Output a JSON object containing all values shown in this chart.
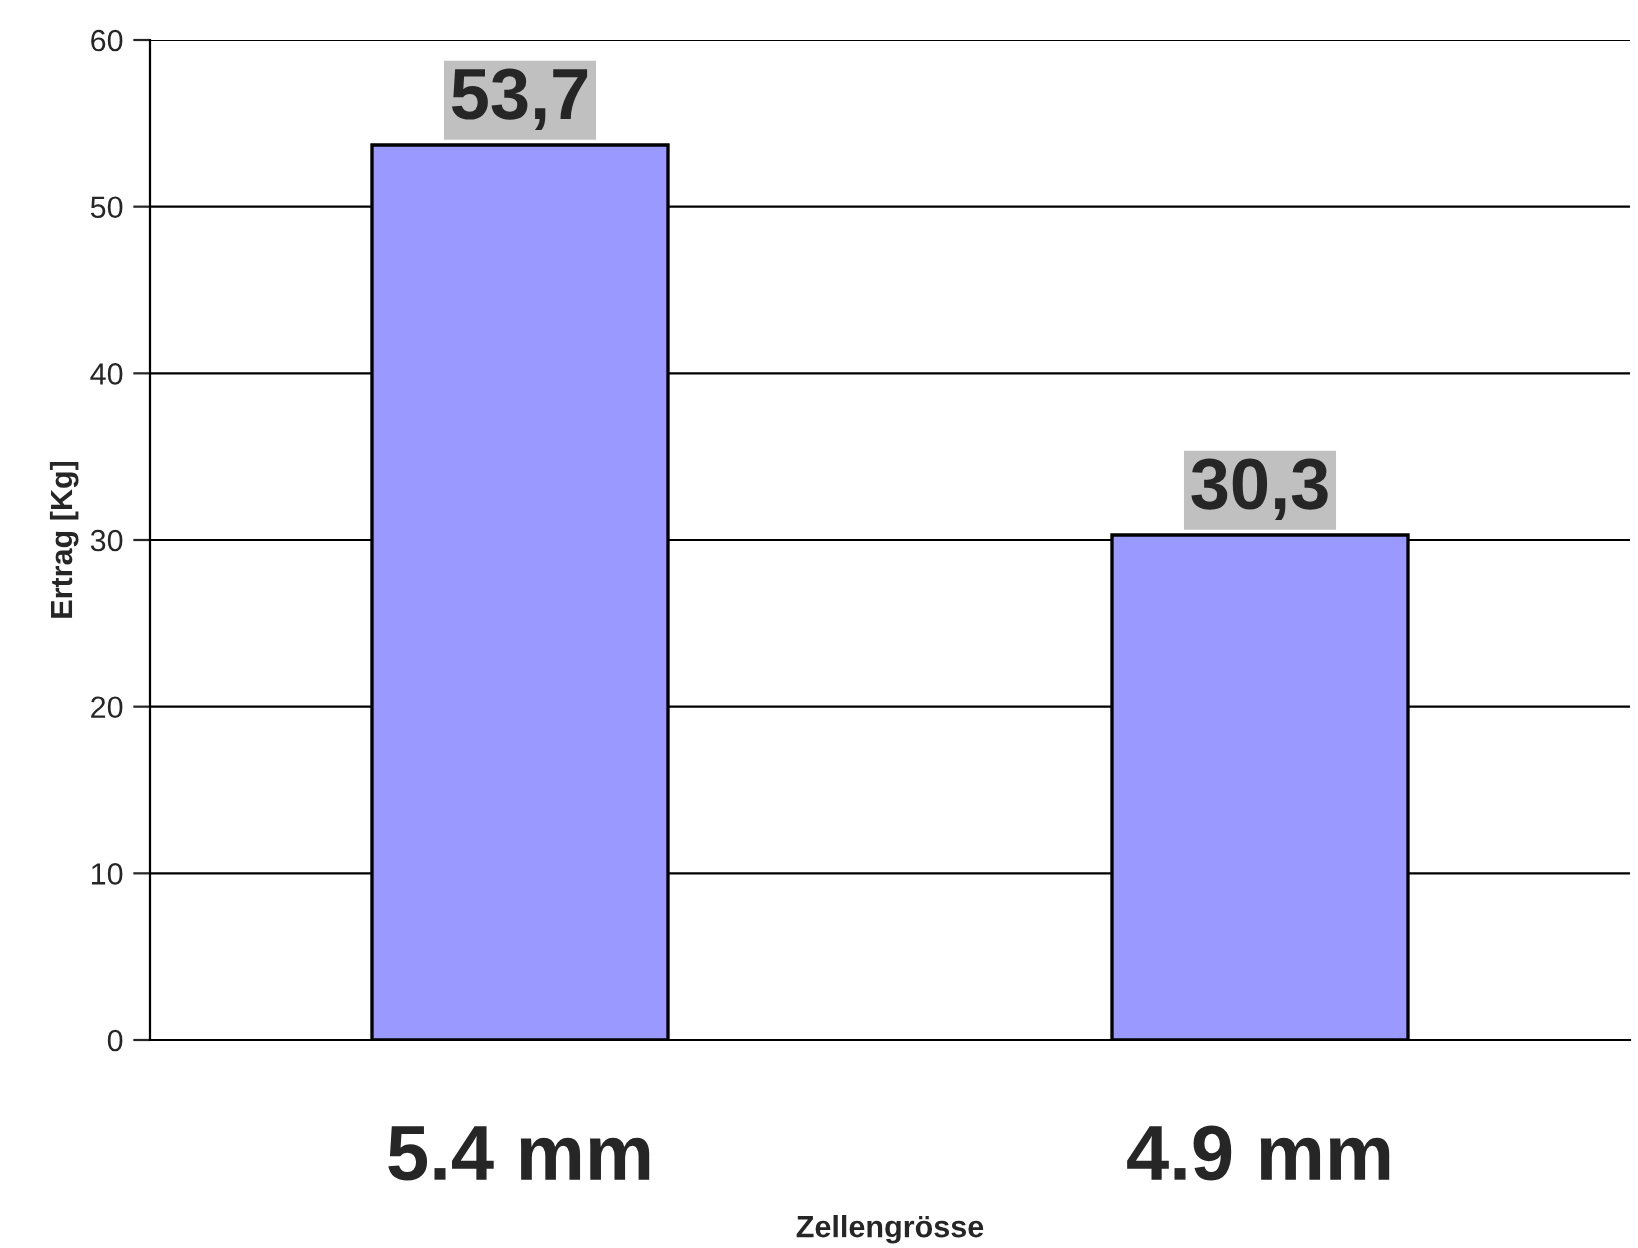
{
  "chart_data": {
    "type": "bar",
    "xlabel": "Zellengrösse",
    "ylabel": "Ertrag [Kg]",
    "categories": [
      "5.4 mm",
      "4.9 mm"
    ],
    "series": [
      {
        "color": "#9999ff",
        "values": [
          53.7,
          30.3
        ],
        "value_labels": [
          "53,7",
          "30,3"
        ]
      }
    ],
    "ylim": [
      0,
      60
    ],
    "yticks": [
      0,
      10,
      20,
      30,
      40,
      50,
      60
    ],
    "grid": "y",
    "legend": false
  }
}
